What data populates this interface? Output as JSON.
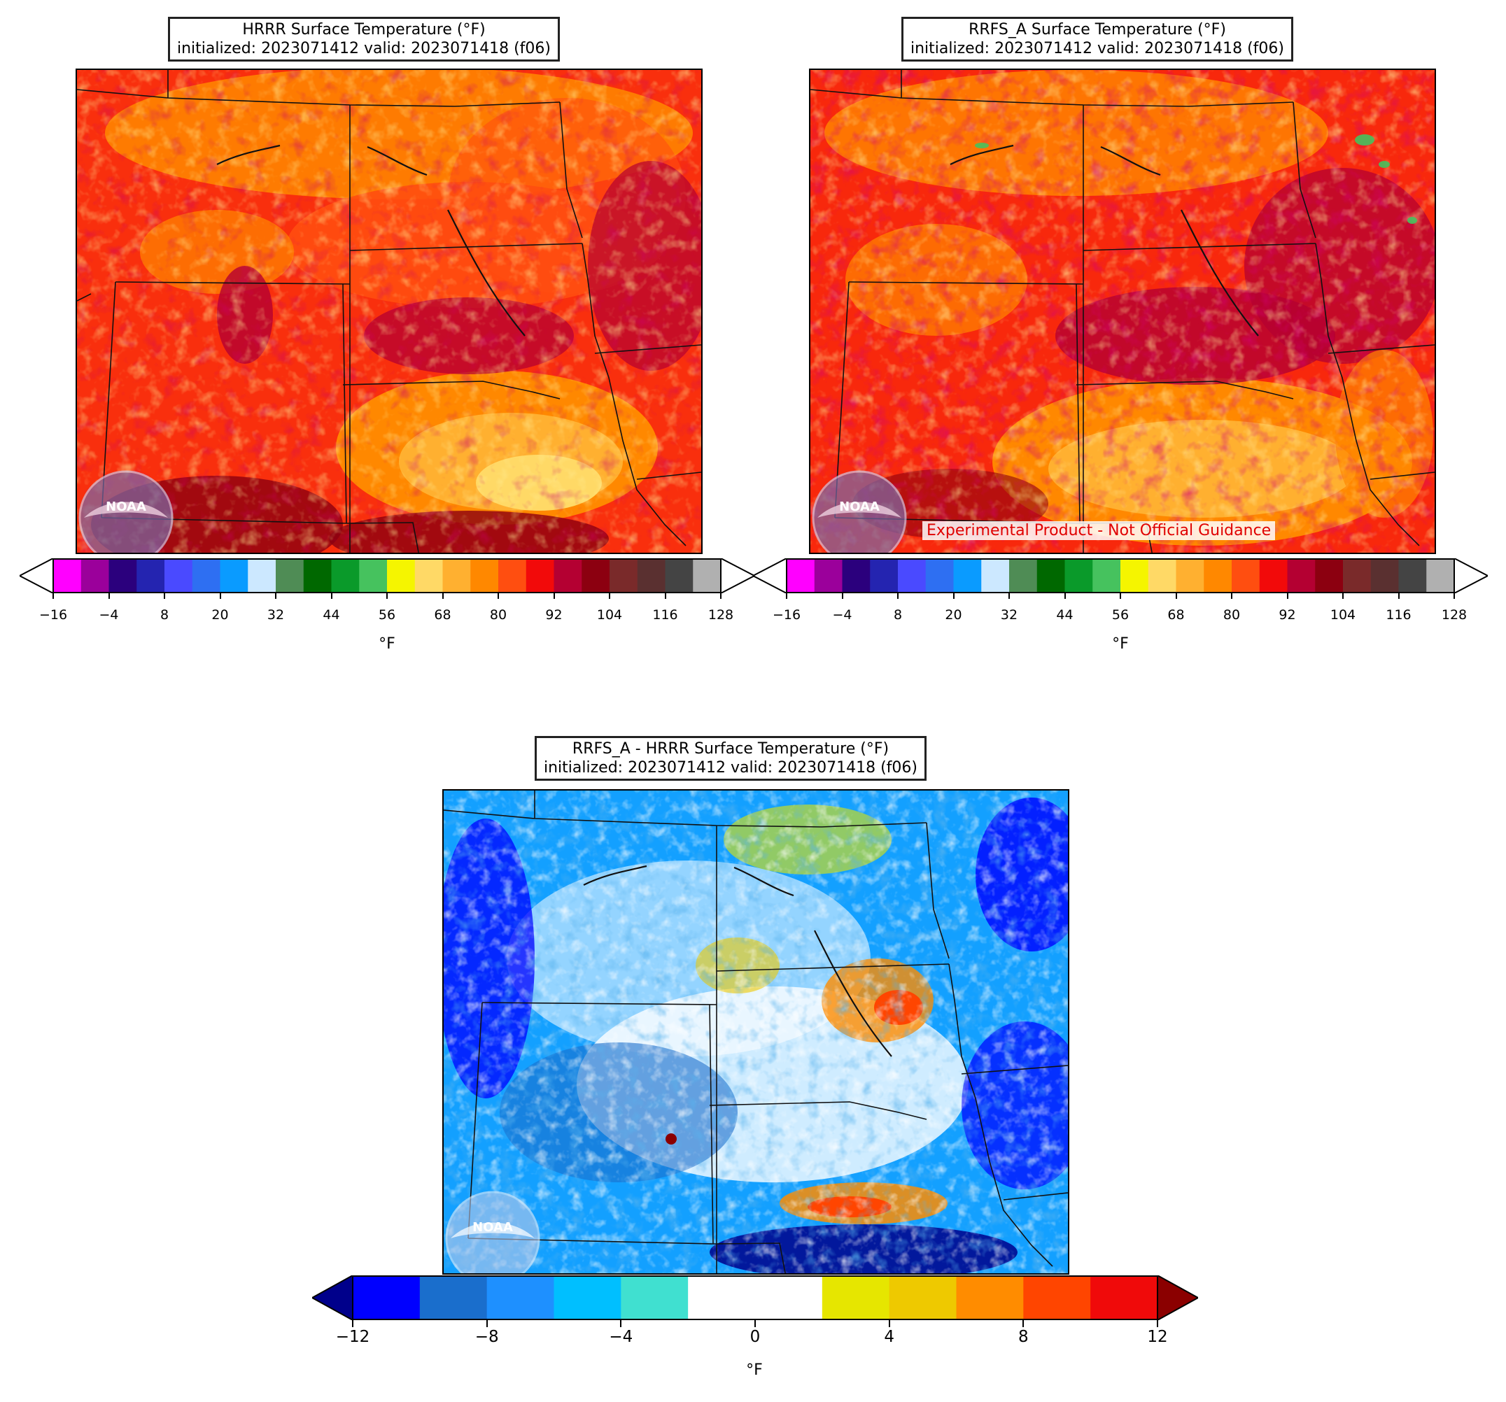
{
  "panels": [
    {
      "id": "hrrr",
      "title_line1": "HRRR Surface Temperature (°F)",
      "title_line2": "initialized: 2023071412 valid: 2023071418 (f06)"
    },
    {
      "id": "rrfs",
      "title_line1": "RRFS_A Surface Temperature (°F)",
      "title_line2": "initialized: 2023071412 valid: 2023071418 (f06)",
      "disclaimer": "Experimental Product - Not Official Guidance"
    },
    {
      "id": "diff",
      "title_line1": "RRFS_A - HRRR Surface Temperature (°F)",
      "title_line2": "initialized: 2023071412 valid: 2023071418 (f06)"
    }
  ],
  "logo_text": "NOAA",
  "temp_colorbar": {
    "unit": "°F",
    "ticks": [
      "−16",
      "−4",
      "8",
      "20",
      "32",
      "44",
      "56",
      "68",
      "80",
      "92",
      "104",
      "116",
      "128"
    ],
    "colors": [
      "#ff00ff",
      "#9b009b",
      "#2b007d",
      "#2424b0",
      "#4a4aff",
      "#2e6ff2",
      "#0a9bff",
      "#cce8ff",
      "#4f8c55",
      "#006800",
      "#0a9a2a",
      "#46c25e",
      "#f5f500",
      "#ffd966",
      "#ffb030",
      "#ff8800",
      "#ff4e10",
      "#f20a0a",
      "#b40032",
      "#8c0010",
      "#7a2a2a",
      "#5a3030",
      "#444444",
      "#b0b0b0"
    ],
    "under_color": "#ffffff",
    "over_color": "#ffffff"
  },
  "diff_colorbar": {
    "unit": "°F",
    "ticks": [
      "−12",
      "−8",
      "−4",
      "0",
      "4",
      "8",
      "12"
    ],
    "colors": [
      "#0000ff",
      "#1a6ecc",
      "#1e90ff",
      "#00bfff",
      "#40e0d0",
      "#ffffff",
      "#ffffff",
      "#e6e600",
      "#eec900",
      "#ff8c00",
      "#ff4500",
      "#f00a0a"
    ],
    "under_color": "#00008b",
    "over_color": "#8b0000"
  }
}
